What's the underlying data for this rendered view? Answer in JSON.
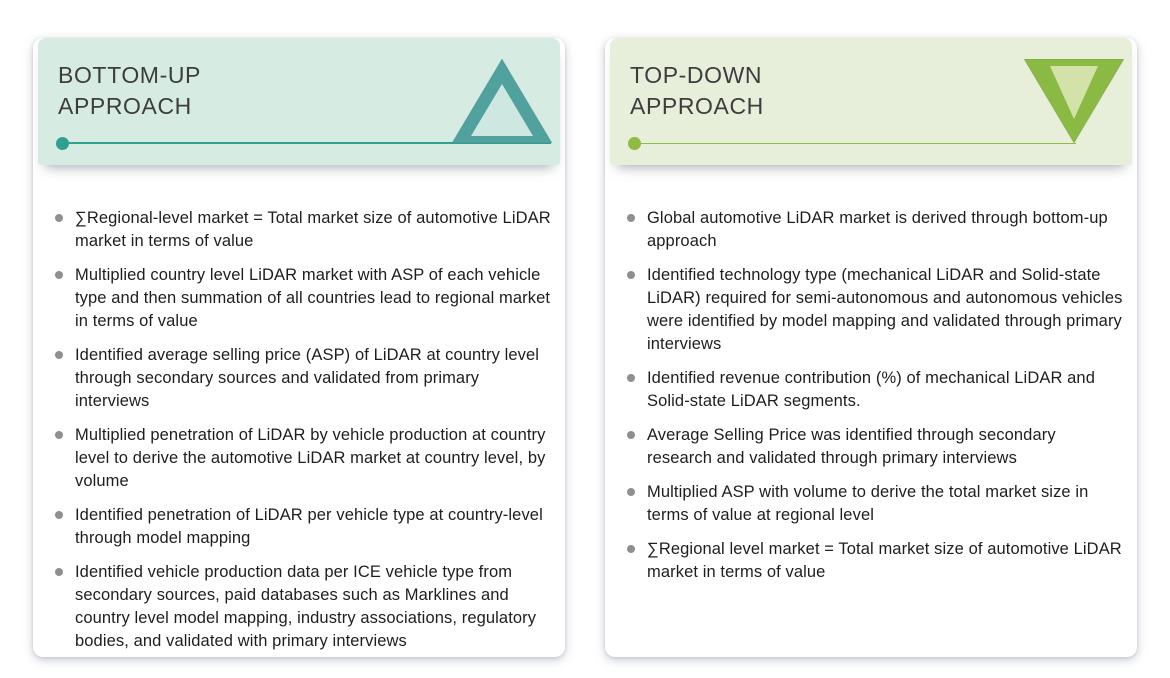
{
  "colors": {
    "page-bg": "#ffffff",
    "card-bg": "#ffffff",
    "title-text": "#3d3d3d",
    "body-text": "#1e1e1e",
    "bullet-dot": "#8f8f8f",
    "left-accent": "#2fa18e",
    "left-header-bg": "#d6ece3",
    "left-tri-outer": "#51a19e",
    "left-tri-inner": "#cfe7e1",
    "right-accent": "#8fbb42",
    "right-header-bg": "#e7eeda",
    "right-tri-outer": "#8aba43",
    "right-tri-inner": "#d3e2a9"
  },
  "left_panel": {
    "title_line1": "BOTTOM-UP",
    "title_line2": "APPROACH",
    "triangle_direction": "up",
    "bullets": [
      "∑Regional-level market = Total market size of automotive LiDAR market in terms of value",
      "Multiplied country level LiDAR market with ASP of each vehicle type and then summation of all countries lead to regional market in terms of value",
      "Identified average selling price (ASP) of LiDAR at country level through secondary sources and validated from primary interviews",
      "Multiplied penetration of LiDAR by vehicle production at country level to derive the automotive LiDAR market at country level, by volume",
      "Identified penetration of LiDAR per vehicle type at country-level through model mapping",
      "Identified vehicle production data per ICE vehicle type from secondary sources, paid databases such as Marklines and country level model mapping, industry associations, regulatory bodies, and validated with primary interviews"
    ]
  },
  "right_panel": {
    "title_line1": "TOP-DOWN",
    "title_line2": "APPROACH",
    "triangle_direction": "down",
    "bullets": [
      "Global automotive LiDAR market is derived through bottom-up approach",
      "Identified technology type (mechanical LiDAR and Solid-state LiDAR) required for semi-autonomous and autonomous vehicles were identified by model mapping and validated through primary interviews",
      "Identified revenue contribution (%) of mechanical LiDAR and Solid-state LiDAR segments.",
      "Average Selling Price was identified through secondary research and validated through primary interviews",
      "Multiplied ASP with volume to derive the total market size in terms of value at regional level",
      "∑Regional level market = Total market size of automotive LiDAR market in terms of value"
    ]
  }
}
